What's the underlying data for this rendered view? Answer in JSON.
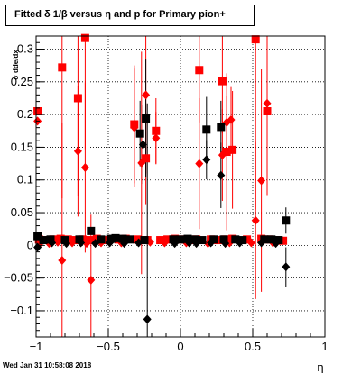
{
  "chart_data": {
    "type": "scatter",
    "title": "Fitted δ 1/β versus η and p for Primary pion+",
    "xlabel": "η",
    "ylabel": "σ dde/dx",
    "xlim": [
      -1,
      1
    ],
    "ylim": [
      -0.14,
      0.32
    ],
    "x_ticks": [
      "−1",
      "−0.5",
      "0",
      "0.5",
      "1"
    ],
    "y_ticks": [
      "−0.1",
      "−0.05",
      "0",
      "0.05",
      "0.1",
      "0.15",
      "0.2",
      "0.25",
      "0.3"
    ],
    "grid": true,
    "footer": "Wed Jan 31 10:58:08 2018",
    "series": [
      {
        "color": "#ff0000",
        "marker": "square",
        "points": [
          {
            "x": -0.99,
            "y": 0.205
          },
          {
            "x": -0.82,
            "y": 0.272,
            "err": 0.2
          },
          {
            "x": -0.71,
            "y": 0.225,
            "err": 0.15
          },
          {
            "x": -0.66,
            "y": 0.317,
            "err": 0.17
          },
          {
            "x": -0.32,
            "y": 0.185,
            "err": 0.09
          },
          {
            "x": -0.24,
            "y": 0.133,
            "err": 0.07
          },
          {
            "x": -0.17,
            "y": 0.175,
            "err": 0.05
          },
          {
            "x": 0.13,
            "y": 0.268,
            "err": 0.08
          },
          {
            "x": 0.29,
            "y": 0.251,
            "err": 0.08
          },
          {
            "x": 0.32,
            "y": 0.143,
            "err": 0.12
          },
          {
            "x": 0.36,
            "y": 0.146,
            "err": 0.09
          },
          {
            "x": 0.52,
            "y": 0.315,
            "err": 0.26
          },
          {
            "x": 0.6,
            "y": 0.205,
            "err": 0.12
          },
          {
            "x": -0.98,
            "y": 0.009
          },
          {
            "x": -0.93,
            "y": 0.008
          },
          {
            "x": -0.88,
            "y": 0.009
          },
          {
            "x": -0.83,
            "y": 0.01
          },
          {
            "x": -0.78,
            "y": 0.009
          },
          {
            "x": -0.73,
            "y": 0.008
          },
          {
            "x": -0.68,
            "y": 0.009
          },
          {
            "x": -0.63,
            "y": 0.008
          },
          {
            "x": -0.58,
            "y": 0.01
          },
          {
            "x": -0.53,
            "y": 0.008
          },
          {
            "x": -0.43,
            "y": 0.009
          },
          {
            "x": -0.38,
            "y": 0.01
          },
          {
            "x": -0.3,
            "y": 0.009
          },
          {
            "x": -0.23,
            "y": 0.008
          },
          {
            "x": -0.14,
            "y": 0.008
          },
          {
            "x": -0.09,
            "y": 0.009
          },
          {
            "x": -0.04,
            "y": 0.01
          },
          {
            "x": 0.01,
            "y": 0.009
          },
          {
            "x": 0.06,
            "y": 0.008
          },
          {
            "x": 0.11,
            "y": 0.009
          },
          {
            "x": 0.21,
            "y": 0.009
          },
          {
            "x": 0.26,
            "y": 0.008
          },
          {
            "x": 0.31,
            "y": 0.009
          },
          {
            "x": 0.36,
            "y": 0.01
          },
          {
            "x": 0.46,
            "y": 0.009
          },
          {
            "x": 0.56,
            "y": 0.01
          },
          {
            "x": 0.61,
            "y": 0.009
          },
          {
            "x": 0.66,
            "y": 0.008
          },
          {
            "x": 0.71,
            "y": 0.007
          }
        ]
      },
      {
        "color": "#ff0000",
        "marker": "diamond",
        "points": [
          {
            "x": -0.99,
            "y": 0.19
          },
          {
            "x": -0.82,
            "y": -0.023,
            "err": 0.21
          },
          {
            "x": -0.71,
            "y": 0.144,
            "err": 0.1
          },
          {
            "x": -0.66,
            "y": 0.119,
            "err": 0.13
          },
          {
            "x": -0.62,
            "y": -0.053,
            "err": 0.1
          },
          {
            "x": -0.32,
            "y": 0.18,
            "err": 0.09
          },
          {
            "x": -0.27,
            "y": 0.126,
            "err": 0.17
          },
          {
            "x": -0.24,
            "y": 0.23,
            "err": 0.12
          },
          {
            "x": -0.17,
            "y": 0.164,
            "err": 0.04
          },
          {
            "x": 0.13,
            "y": 0.125,
            "err": 0.1
          },
          {
            "x": 0.29,
            "y": 0.138,
            "err": 0.07
          },
          {
            "x": 0.32,
            "y": 0.188,
            "err": 0.04
          },
          {
            "x": 0.35,
            "y": 0.192,
            "err": 0.05
          },
          {
            "x": 0.52,
            "y": 0.038,
            "err": 0.12
          },
          {
            "x": 0.56,
            "y": 0.099,
            "err": 0.17
          },
          {
            "x": 0.6,
            "y": 0.217,
            "err": 0.14
          },
          {
            "x": -0.97,
            "y": 0.004
          },
          {
            "x": -0.91,
            "y": 0.003
          },
          {
            "x": -0.85,
            "y": 0.005
          },
          {
            "x": -0.75,
            "y": 0.004
          },
          {
            "x": -0.65,
            "y": 0.003
          },
          {
            "x": -0.55,
            "y": 0.004
          },
          {
            "x": -0.41,
            "y": 0.004
          },
          {
            "x": -0.21,
            "y": 0.005
          },
          {
            "x": -0.11,
            "y": 0.004
          },
          {
            "x": 0.04,
            "y": 0.004
          },
          {
            "x": 0.19,
            "y": 0.003
          },
          {
            "x": 0.34,
            "y": 0.004
          },
          {
            "x": 0.49,
            "y": 0.004
          },
          {
            "x": 0.64,
            "y": 0.004
          }
        ]
      },
      {
        "color": "#000000",
        "marker": "square",
        "points": [
          {
            "x": -0.99,
            "y": 0.014
          },
          {
            "x": -0.62,
            "y": 0.022
          },
          {
            "x": -0.28,
            "y": 0.171,
            "err": 0.05
          },
          {
            "x": -0.24,
            "y": 0.194,
            "err": 0.09
          },
          {
            "x": 0.18,
            "y": 0.177,
            "err": 0.05
          },
          {
            "x": 0.28,
            "y": 0.181,
            "err": 0.04
          },
          {
            "x": 0.73,
            "y": 0.038,
            "err": 0.02
          },
          {
            "x": -0.95,
            "y": 0.008
          },
          {
            "x": -0.9,
            "y": 0.009
          },
          {
            "x": -0.8,
            "y": 0.008
          },
          {
            "x": -0.7,
            "y": 0.009
          },
          {
            "x": -0.55,
            "y": 0.009
          },
          {
            "x": -0.48,
            "y": 0.01
          },
          {
            "x": -0.45,
            "y": 0.011
          },
          {
            "x": -0.4,
            "y": 0.01
          },
          {
            "x": -0.35,
            "y": 0.009
          },
          {
            "x": -0.25,
            "y": 0.008
          },
          {
            "x": -0.05,
            "y": 0.009
          },
          {
            "x": 0.0,
            "y": 0.009
          },
          {
            "x": 0.05,
            "y": 0.01
          },
          {
            "x": 0.1,
            "y": 0.009
          },
          {
            "x": 0.15,
            "y": 0.008
          },
          {
            "x": 0.23,
            "y": 0.009
          },
          {
            "x": 0.3,
            "y": 0.009
          },
          {
            "x": 0.38,
            "y": 0.009
          },
          {
            "x": 0.43,
            "y": 0.008
          },
          {
            "x": 0.58,
            "y": 0.009
          },
          {
            "x": 0.63,
            "y": 0.009
          },
          {
            "x": 0.68,
            "y": 0.008
          }
        ]
      },
      {
        "color": "#000000",
        "marker": "diamond",
        "points": [
          {
            "x": -0.99,
            "y": -0.003
          },
          {
            "x": -0.26,
            "y": 0.154,
            "err": 0.06
          },
          {
            "x": -0.23,
            "y": -0.113,
            "err": 0.33
          },
          {
            "x": 0.18,
            "y": 0.131,
            "err": 0.03
          },
          {
            "x": 0.28,
            "y": 0.107,
            "err": 0.05
          },
          {
            "x": 0.73,
            "y": -0.033,
            "err": 0.03
          },
          {
            "x": -0.89,
            "y": 0.004
          },
          {
            "x": -0.79,
            "y": 0.003
          },
          {
            "x": -0.69,
            "y": 0.004
          },
          {
            "x": -0.59,
            "y": 0.003
          },
          {
            "x": -0.49,
            "y": 0.004
          },
          {
            "x": -0.39,
            "y": 0.003
          },
          {
            "x": -0.29,
            "y": 0.004
          },
          {
            "x": -0.04,
            "y": 0.003
          },
          {
            "x": 0.06,
            "y": 0.004
          },
          {
            "x": 0.11,
            "y": 0.003
          },
          {
            "x": 0.21,
            "y": 0.004
          },
          {
            "x": 0.31,
            "y": 0.003
          },
          {
            "x": 0.41,
            "y": 0.004
          },
          {
            "x": 0.56,
            "y": 0.004
          },
          {
            "x": 0.66,
            "y": 0.003
          }
        ]
      }
    ]
  }
}
